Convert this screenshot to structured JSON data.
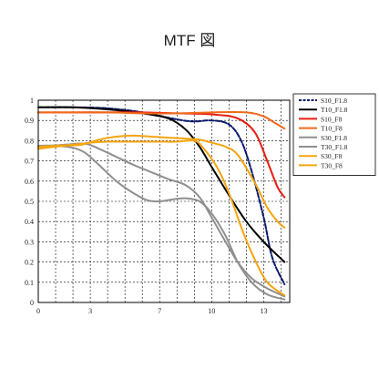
{
  "chart_data": {
    "type": "line",
    "title": "MTF 図",
    "xlabel": "",
    "ylabel": "",
    "xlim": [
      0,
      14.5
    ],
    "ylim": [
      0,
      1
    ],
    "x_ticks": [
      0,
      3,
      7,
      10,
      13
    ],
    "y_ticks": [
      0,
      0.1,
      0.2,
      0.3,
      0.4,
      0.5,
      0.6,
      0.7,
      0.8,
      0.9,
      1
    ],
    "y_tick_labels": [
      "0",
      "0.1",
      "0.2",
      "0.3",
      "0.4",
      "0.5",
      "0.6",
      "0.7",
      "0.8",
      "0.9",
      "1"
    ],
    "x_tick_labels": [
      "0",
      "3",
      "7",
      "10",
      "13"
    ],
    "grid": true,
    "legend_position": "top-right",
    "series": [
      {
        "name": "S10_F1.8",
        "color": "#0a1a6e",
        "dash": "5,2",
        "width": 2,
        "x": [
          0,
          2,
          4,
          6,
          8,
          9,
          10,
          11,
          11.7,
          12.3,
          13,
          13.5,
          14.2
        ],
        "y": [
          0.965,
          0.965,
          0.96,
          0.94,
          0.905,
          0.895,
          0.9,
          0.88,
          0.8,
          0.65,
          0.42,
          0.22,
          0.09
        ]
      },
      {
        "name": "T10_F1.8",
        "color": "#000000",
        "dash": "",
        "width": 2,
        "x": [
          0,
          2,
          4,
          6,
          7.5,
          8.5,
          9.3,
          10,
          11,
          12,
          13,
          14.2
        ],
        "y": [
          0.965,
          0.965,
          0.955,
          0.935,
          0.91,
          0.855,
          0.77,
          0.67,
          0.53,
          0.4,
          0.3,
          0.2
        ]
      },
      {
        "name": "S10_F8",
        "color": "#e81c10",
        "dash": "",
        "width": 2,
        "x": [
          0,
          2,
          4,
          6,
          8,
          10,
          11.5,
          12.5,
          13.2,
          13.8,
          14.2
        ],
        "y": [
          0.94,
          0.94,
          0.94,
          0.94,
          0.935,
          0.93,
          0.91,
          0.84,
          0.7,
          0.57,
          0.52
        ]
      },
      {
        "name": "T10_F8",
        "color": "#ee6a1a",
        "dash": "",
        "width": 2,
        "x": [
          0,
          2,
          4,
          6,
          8,
          10,
          12,
          13,
          13.6,
          14.2
        ],
        "y": [
          0.94,
          0.94,
          0.94,
          0.935,
          0.935,
          0.94,
          0.94,
          0.92,
          0.89,
          0.86
        ]
      },
      {
        "name": "S30_F1.8",
        "color": "#8f8f8f",
        "dash": "",
        "width": 2,
        "x": [
          0,
          1.5,
          2.7,
          3.5,
          4.5,
          5.5,
          6.5,
          7.5,
          8.5,
          9.3,
          10,
          10.8,
          11.5,
          12.3,
          13.2,
          14.2
        ],
        "y": [
          0.77,
          0.78,
          0.785,
          0.76,
          0.72,
          0.68,
          0.645,
          0.61,
          0.58,
          0.52,
          0.42,
          0.3,
          0.2,
          0.12,
          0.07,
          0.03
        ]
      },
      {
        "name": "T30_F1.8",
        "color": "#8f8f8f",
        "dash": "",
        "width": 2,
        "x": [
          0,
          1,
          2,
          2.7,
          3.5,
          4.5,
          5.5,
          6.3,
          7,
          7.8,
          8.5,
          9.3,
          10,
          10.8,
          11.5,
          12.3,
          13.2,
          14.2
        ],
        "y": [
          0.775,
          0.775,
          0.765,
          0.74,
          0.68,
          0.6,
          0.54,
          0.505,
          0.5,
          0.51,
          0.515,
          0.5,
          0.44,
          0.33,
          0.2,
          0.1,
          0.04,
          0.015
        ]
      },
      {
        "name": "S30_F8",
        "color": "#f5a50f",
        "dash": "",
        "width": 2,
        "x": [
          0,
          1.5,
          2.5,
          3.5,
          4.5,
          5.5,
          6.5,
          7.5,
          8.5,
          9.3,
          10,
          10.8,
          11.5,
          12.5,
          13.2,
          13.8,
          14.2
        ],
        "y": [
          0.76,
          0.775,
          0.78,
          0.805,
          0.82,
          0.825,
          0.82,
          0.815,
          0.81,
          0.805,
          0.79,
          0.77,
          0.73,
          0.59,
          0.47,
          0.4,
          0.37
        ]
      },
      {
        "name": "T30_F8",
        "color": "#f5a50f",
        "dash": "",
        "width": 2,
        "x": [
          0,
          1,
          2,
          3,
          4,
          5,
          6,
          7,
          8,
          9,
          9.5,
          10.3,
          11,
          11.8,
          12.5,
          13.2,
          14.2
        ],
        "y": [
          0.77,
          0.775,
          0.78,
          0.79,
          0.795,
          0.795,
          0.795,
          0.795,
          0.795,
          0.8,
          0.765,
          0.67,
          0.54,
          0.35,
          0.21,
          0.1,
          0.035
        ]
      }
    ]
  }
}
